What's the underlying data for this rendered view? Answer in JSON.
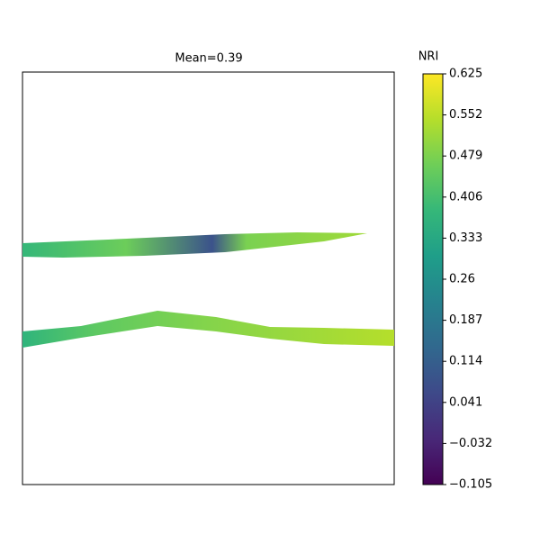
{
  "chart_data": {
    "type": "image",
    "title": "Mean=0.39",
    "colorbar_label": "NRI",
    "colormap": "viridis",
    "clim": [
      -0.105,
      0.625
    ],
    "cticks": [
      {
        "value": -0.105,
        "label": "−0.105"
      },
      {
        "value": -0.032,
        "label": "−0.032"
      },
      0.041,
      0.114,
      0.187,
      0.26,
      0.333,
      0.406,
      0.479,
      0.552,
      0.625
    ]
  }
}
